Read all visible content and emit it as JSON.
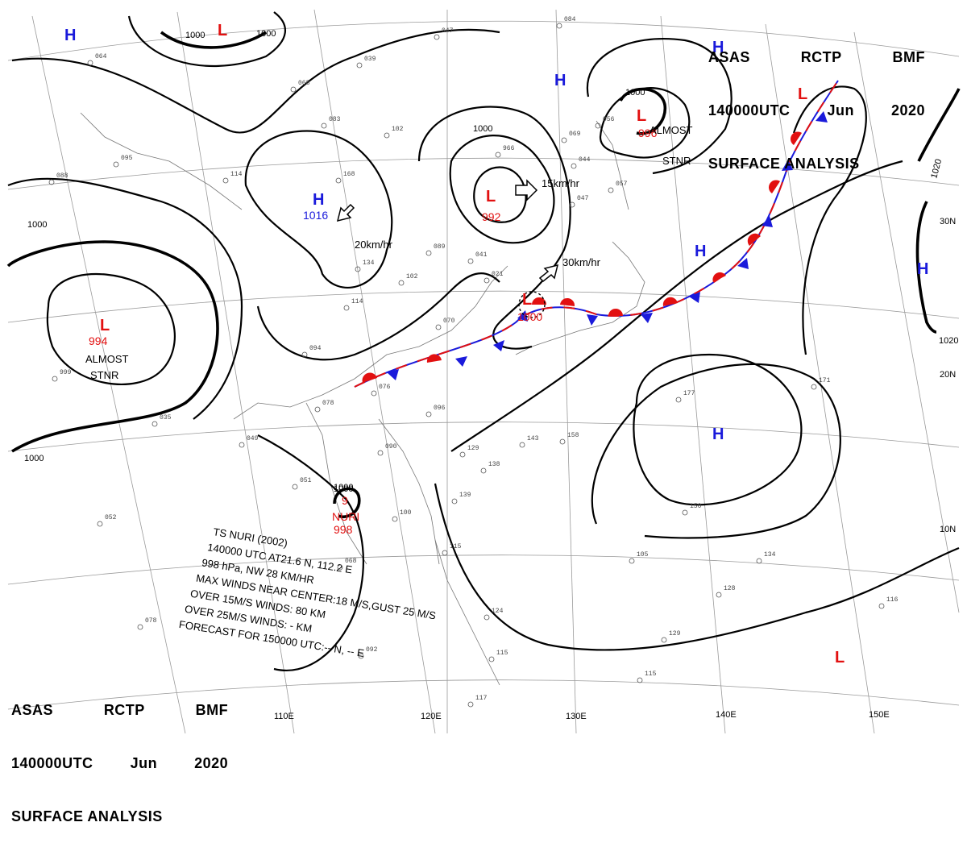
{
  "header": {
    "line1": [
      "ASAS",
      "RCTP",
      "BMF"
    ],
    "line2": [
      "140000UTC",
      "Jun",
      "2020"
    ],
    "line3": "SURFACE ANALYSIS"
  },
  "colors": {
    "high": "#1a1adb",
    "low": "#e21010",
    "isobar": "#000000",
    "grid": "#9a9a9a"
  },
  "pressure_centers": [
    {
      "type": "H",
      "label": "H"
    },
    {
      "type": "L",
      "label": "L"
    },
    {
      "type": "H",
      "label": "H"
    },
    {
      "type": "L",
      "label": "L",
      "value": "996",
      "note": [
        "ALMOST",
        "STNR"
      ]
    },
    {
      "type": "L",
      "label": "L"
    },
    {
      "type": "H",
      "label": "H"
    },
    {
      "type": "H",
      "label": "H",
      "value": "1016"
    },
    {
      "type": "L",
      "label": "L",
      "value": "992"
    },
    {
      "type": "L",
      "label": "L",
      "value": "994",
      "note": [
        "ALMOST",
        "STNR"
      ]
    },
    {
      "type": "L",
      "label": "L",
      "value": "1000"
    },
    {
      "type": "H",
      "label": "H"
    },
    {
      "type": "H",
      "label": "H"
    },
    {
      "type": "H",
      "label": "H"
    },
    {
      "type": "L",
      "label": "L"
    }
  ],
  "isobar_labels": [
    "1000",
    "1000",
    "1000",
    "1000",
    "1000",
    "1000",
    "1000",
    "1020",
    "1020"
  ],
  "motion_labels": [
    "15km/hr",
    "20km/hr",
    "30km/hr"
  ],
  "typhoon": {
    "name": "NURI",
    "value": "998",
    "center_label": "1000",
    "digit": "9",
    "bulletin": [
      "TS  NURI  (2002)",
      "140000  UTC  AT21.6 N, 112.2 E",
      "998 hPa, NW  28  KM/HR",
      "MAX WINDS NEAR CENTER:18 M/S,GUST 25 M/S",
      "OVER 15M/S WINDS: 80 KM",
      "OVER 25M/S WINDS: - KM",
      "FORECAST FOR 150000 UTC:-- N, -- E"
    ]
  },
  "longitude_labels": [
    "110E",
    "120E",
    "130E",
    "140E",
    "150E"
  ],
  "latitude_labels": [
    "30N",
    "20N",
    "10N"
  ],
  "station_reports": [
    "047",
    "084",
    "064",
    "039",
    "068",
    "102",
    "083",
    "088",
    "095",
    "114",
    "168",
    "056",
    "069",
    "044",
    "057",
    "047",
    "041",
    "089",
    "134",
    "102",
    "114",
    "021",
    "070",
    "078",
    "094",
    "076",
    "096",
    "049",
    "090",
    "051",
    "129",
    "138",
    "143",
    "158",
    "177",
    "171",
    "150",
    "105",
    "134",
    "128",
    "116",
    "129",
    "115",
    "124",
    "115",
    "092",
    "117",
    "068",
    "100",
    "139",
    "115",
    "999",
    "035",
    "052",
    "078",
    "966"
  ]
}
